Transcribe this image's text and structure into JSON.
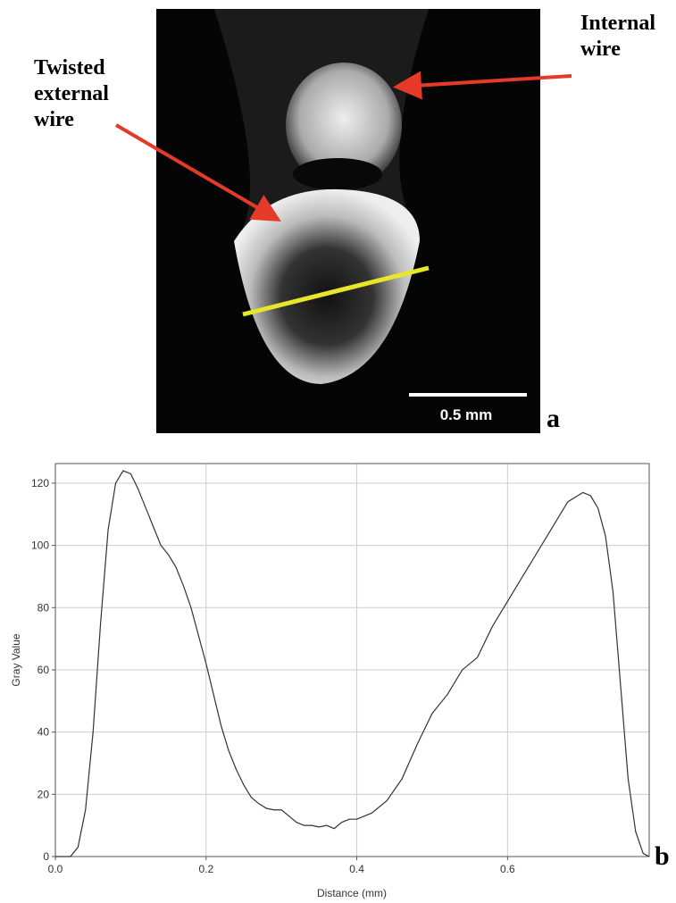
{
  "figure": {
    "panel_a": {
      "label_external": "Twisted external wire",
      "label_internal": "Internal wire",
      "scale_bar": "0.5 mm",
      "panel_letter": "a"
    },
    "panel_b": {
      "panel_letter": "b"
    }
  },
  "chart_data": {
    "type": "line",
    "x_label": "Distance (mm)",
    "y_label": "Gray Value",
    "x": [
      0,
      0.02,
      0.03,
      0.04,
      0.05,
      0.06,
      0.07,
      0.08,
      0.09,
      0.1,
      0.11,
      0.12,
      0.13,
      0.14,
      0.15,
      0.16,
      0.17,
      0.18,
      0.19,
      0.2,
      0.21,
      0.22,
      0.23,
      0.24,
      0.25,
      0.26,
      0.27,
      0.28,
      0.29,
      0.3,
      0.31,
      0.32,
      0.33,
      0.34,
      0.35,
      0.36,
      0.37,
      0.38,
      0.39,
      0.4,
      0.42,
      0.44,
      0.46,
      0.48,
      0.5,
      0.52,
      0.54,
      0.56,
      0.58,
      0.6,
      0.62,
      0.64,
      0.66,
      0.68,
      0.7,
      0.71,
      0.72,
      0.73,
      0.74,
      0.75,
      0.76,
      0.77,
      0.78,
      0.788
    ],
    "series": [
      {
        "color": "#333333",
        "values": [
          0,
          0,
          3,
          15,
          40,
          75,
          105,
          120,
          124,
          123,
          118,
          112,
          106,
          100,
          97,
          93,
          87,
          80,
          71,
          62,
          52,
          42,
          34,
          28,
          23,
          19,
          17,
          15.5,
          15,
          15,
          13,
          11,
          10,
          10,
          9.5,
          10,
          9,
          11,
          12,
          12,
          14,
          18,
          25,
          36,
          46,
          52,
          60,
          64,
          74,
          82,
          90,
          98,
          106,
          114,
          117,
          116,
          112,
          103,
          85,
          55,
          25,
          8,
          1,
          0
        ]
      }
    ],
    "xlim": [
      0,
      0.788
    ],
    "ylim": [
      0,
      126.3
    ],
    "xticks": [
      {
        "value": 0,
        "label": "0.0"
      },
      0.2,
      0.4,
      0.6
    ],
    "yticks": [
      0,
      20,
      40,
      60,
      80,
      100,
      120
    ],
    "grid": true
  }
}
